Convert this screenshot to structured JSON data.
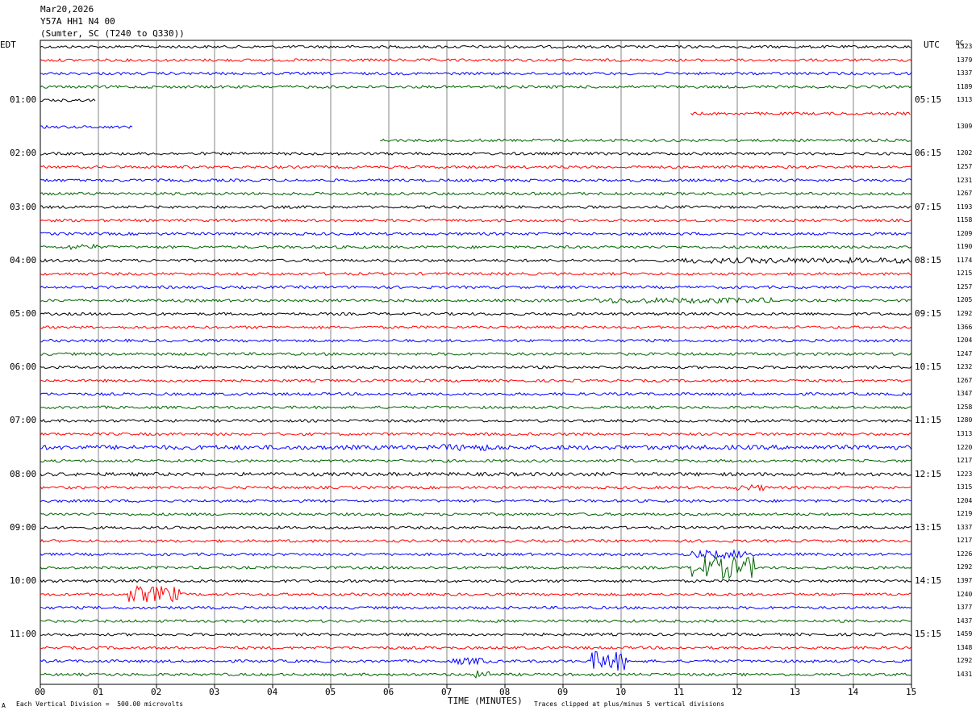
{
  "header": {
    "date": "Mar20,2026",
    "station": "Y57A HH1 N4 00",
    "location": "(Sumter, SC (T240 to Q330))"
  },
  "axes": {
    "left_label": "EDT",
    "right_label": "UTC",
    "dc_label": "DC",
    "xlabel": "TIME (MINUTES)"
  },
  "footer": {
    "division_note": "Each Vertical Division =  500.00 microvolts",
    "clip_note": "Traces clipped at plus/minus 5 vertical divisions",
    "corner_mark": "A"
  },
  "chart_data": {
    "type": "line",
    "title": "",
    "xlim": [
      0,
      15
    ],
    "x_ticks": [
      "00",
      "01",
      "02",
      "03",
      "04",
      "05",
      "06",
      "07",
      "08",
      "09",
      "10",
      "11",
      "12",
      "13",
      "14",
      "15"
    ],
    "trace_colors": [
      "#000000",
      "#ff0000",
      "#0000ff",
      "#006400"
    ],
    "rows_per_hour": 4,
    "rows": 48,
    "left_time_labels": [
      "01:00",
      "02:00",
      "03:00",
      "04:00",
      "05:00",
      "06:00",
      "07:00",
      "08:00",
      "09:00",
      "10:00",
      "11:00"
    ],
    "right_time_labels": [
      "05:15",
      "06:15",
      "07:15",
      "08:15",
      "09:15",
      "10:15",
      "11:15",
      "12:15",
      "13:15",
      "14:15",
      "15:15"
    ],
    "dc_offsets": [
      "1323",
      "1379",
      "1337",
      "1189",
      "1313",
      "",
      "1309",
      "",
      "1202",
      "1257",
      "1231",
      "1267",
      "1193",
      "1158",
      "1209",
      "1190",
      "1174",
      "1215",
      "1257",
      "1205",
      "1292",
      "1366",
      "1204",
      "1247",
      "1232",
      "1267",
      "1347",
      "1258",
      "1280",
      "1313",
      "1220",
      "1217",
      "1223",
      "1315",
      "1204",
      "1219",
      "1337",
      "1217",
      "1226",
      "1292",
      "1397",
      "1240",
      "1377",
      "1437",
      "1459",
      "1348",
      "1292",
      "1431"
    ],
    "gaps": [
      {
        "row": 4,
        "segments": [
          [
            0,
            0.95
          ]
        ]
      },
      {
        "row": 5,
        "segments": [
          [
            11.2,
            15
          ]
        ]
      },
      {
        "row": 6,
        "segments": [
          [
            0,
            1.6
          ]
        ]
      },
      {
        "row": 7,
        "segments": [
          [
            5.85,
            15
          ]
        ]
      }
    ],
    "events": [
      {
        "row": 15,
        "start": 0.5,
        "end": 1.0,
        "amp": 2
      },
      {
        "row": 16,
        "start": 11.0,
        "end": 15.0,
        "amp": 2
      },
      {
        "row": 19,
        "start": 9.5,
        "end": 12.6,
        "amp": 2
      },
      {
        "row": 30,
        "start": 0.0,
        "end": 15.0,
        "amp": 1.6
      },
      {
        "row": 30,
        "start": 6.8,
        "end": 7.9,
        "amp": 2.4
      },
      {
        "row": 32,
        "start": 0.0,
        "end": 15.0,
        "amp": 1.3
      },
      {
        "row": 33,
        "start": 12.0,
        "end": 12.5,
        "amp": 2.2
      },
      {
        "row": 38,
        "start": 11.2,
        "end": 12.3,
        "amp": 3
      },
      {
        "row": 39,
        "start": 11.2,
        "end": 12.3,
        "amp": 8
      },
      {
        "row": 41,
        "start": 1.45,
        "end": 2.4,
        "amp": 6
      },
      {
        "row": 46,
        "start": 9.5,
        "end": 10.1,
        "amp": 7
      },
      {
        "row": 46,
        "start": 7.1,
        "end": 7.7,
        "amp": 2.5
      },
      {
        "row": 47,
        "start": 7.5,
        "end": 7.8,
        "amp": 3
      }
    ]
  }
}
